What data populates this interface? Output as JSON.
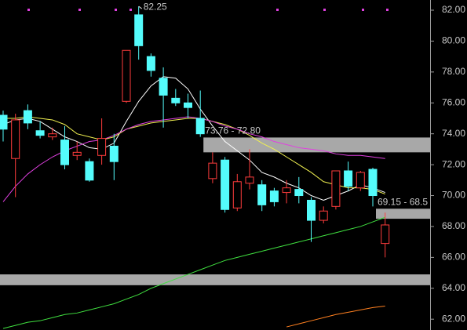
{
  "chart_data": {
    "type": "candlestick",
    "categories": [
      null,
      null,
      null,
      null,
      null,
      null,
      null,
      null,
      null,
      null,
      null,
      null,
      null,
      null,
      null,
      null,
      null,
      null,
      null,
      null,
      null,
      null,
      null,
      null,
      null,
      null,
      null,
      null,
      null,
      null,
      null,
      null
    ],
    "open": [
      75.2,
      72.4,
      75.5,
      74.2,
      73.8,
      73.6,
      72.6,
      72.2,
      72.6,
      73.2,
      76.1,
      81.7,
      79.0,
      77.6,
      76.3,
      76.0,
      75.0,
      71.1,
      72.3,
      69.2,
      70.8,
      70.7,
      70.3,
      70.2,
      70.4,
      69.7,
      68.4,
      69.3,
      71.6,
      70.5,
      71.7,
      66.9
    ],
    "high": [
      75.5,
      75.3,
      75.9,
      74.8,
      74.4,
      74.5,
      73.5,
      72.4,
      75.0,
      74.0,
      79.4,
      82.25,
      79.2,
      78.3,
      76.9,
      76.6,
      76.8,
      72.8,
      72.5,
      71.4,
      73.0,
      71.0,
      70.5,
      71.0,
      71.2,
      69.9,
      69.3,
      71.6,
      72.2,
      71.6,
      71.8,
      68.9
    ],
    "low": [
      73.5,
      69.9,
      74.3,
      73.7,
      73.6,
      71.7,
      72.3,
      70.9,
      72.0,
      71.0,
      76.0,
      78.8,
      77.7,
      74.4,
      75.8,
      75.0,
      73.8,
      70.8,
      68.9,
      69.0,
      70.4,
      69.0,
      69.3,
      69.5,
      69.5,
      67.0,
      68.2,
      69.1,
      70.3,
      70.3,
      69.3,
      66.0
    ],
    "close": [
      74.3,
      74.9,
      74.7,
      73.9,
      74.0,
      72.0,
      72.8,
      71.0,
      73.7,
      72.2,
      79.4,
      79.7,
      78.1,
      76.5,
      76.0,
      75.7,
      74.0,
      72.1,
      69.1,
      70.9,
      71.2,
      69.4,
      69.6,
      70.5,
      70.0,
      68.4,
      69.0,
      71.6,
      70.6,
      71.5,
      70.0,
      68.1
    ],
    "up_color": "#ff3c3c",
    "down_color": "#54fcfc",
    "lines": [
      {
        "color": "#ffffff",
        "values": [
          74.6,
          74.9,
          75.0,
          74.8,
          74.3,
          73.8,
          73.5,
          73.1,
          73.0,
          73.4,
          74.8,
          76.1,
          77.1,
          77.7,
          77.6,
          76.9,
          75.6,
          74.5,
          73.5,
          72.9,
          72.3,
          71.5,
          71.2,
          70.8,
          70.5,
          70.0,
          69.7,
          70.0,
          70.3,
          70.7,
          70.5,
          70.2
        ]
      },
      {
        "color": "#f0f050",
        "values": [
          75.0,
          75.0,
          75.1,
          75.0,
          74.9,
          74.6,
          74.0,
          73.8,
          73.6,
          73.8,
          74.3,
          74.5,
          74.7,
          74.8,
          74.9,
          75.0,
          75.0,
          74.8,
          74.6,
          74.3,
          73.9,
          73.4,
          73.0,
          72.5,
          72.0,
          71.5,
          70.9,
          70.7,
          70.5,
          70.5,
          70.4,
          70.1
        ]
      },
      {
        "color": "#e040e0",
        "values": [
          69.6,
          70.6,
          71.4,
          72.0,
          72.5,
          72.9,
          73.2,
          73.5,
          73.6,
          73.9,
          74.3,
          74.6,
          74.8,
          74.9,
          75.0,
          75.1,
          75.0,
          74.8,
          74.5,
          74.3,
          74.0,
          73.8,
          73.5,
          73.3,
          73.1,
          73.0,
          72.9,
          72.7,
          72.6,
          72.6,
          72.5,
          72.4
        ]
      },
      {
        "color": "#40e040",
        "values": [
          61.4,
          61.6,
          61.8,
          61.9,
          62.1,
          62.3,
          62.4,
          62.6,
          62.8,
          63.0,
          63.3,
          63.6,
          64.0,
          64.3,
          64.6,
          64.9,
          65.2,
          65.5,
          65.8,
          66.0,
          66.2,
          66.4,
          66.6,
          66.8,
          67.0,
          67.2,
          67.4,
          67.6,
          67.8,
          68.0,
          68.3,
          68.6
        ]
      },
      {
        "color": "#ff8020",
        "values": [
          null,
          null,
          null,
          null,
          null,
          null,
          null,
          null,
          null,
          null,
          null,
          null,
          null,
          null,
          null,
          null,
          null,
          null,
          null,
          null,
          null,
          null,
          null,
          61.5,
          61.7,
          61.9,
          62.1,
          62.3,
          62.45,
          62.6,
          62.75,
          62.85
        ]
      }
    ],
    "zones": [
      {
        "label": "73.76 - 72.80",
        "top": 73.76,
        "bottom": 72.8,
        "start": 16
      },
      {
        "label": "69.15 - 68.5",
        "top": 69.15,
        "bottom": 68.5,
        "start": 30
      },
      {
        "top": 64.9,
        "bottom": 64.2,
        "start": 0
      }
    ],
    "ylim": [
      61.3,
      82.66
    ],
    "yticks": [
      {
        "value": 62,
        "label": "62.00"
      },
      {
        "value": 64,
        "label": "64.00"
      },
      {
        "value": 66,
        "label": "66.00"
      },
      {
        "value": 68,
        "label": "68.00"
      },
      {
        "value": 70,
        "label": "70.00"
      },
      {
        "value": 72,
        "label": "72.00"
      },
      {
        "value": 74,
        "label": "74.00"
      },
      {
        "value": 76,
        "label": "76.00"
      },
      {
        "value": 78,
        "label": "78.00"
      },
      {
        "value": 80,
        "label": "80.00"
      },
      {
        "value": 82,
        "label": "82.00"
      }
    ]
  }
}
